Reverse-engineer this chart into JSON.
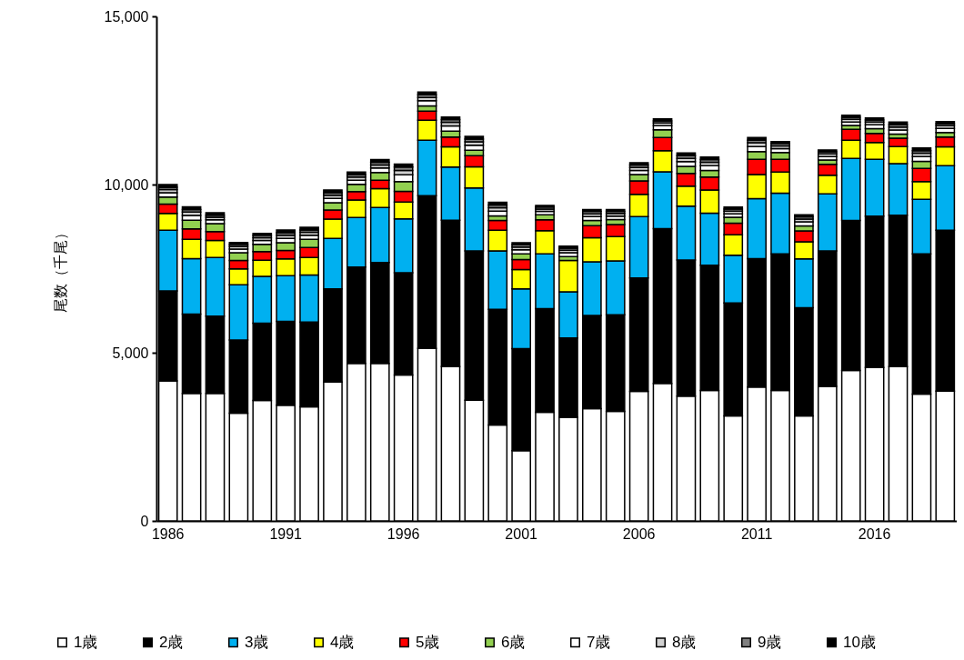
{
  "chart_data": {
    "type": "bar",
    "stacked": true,
    "ylabel": "尾数（千尾）",
    "categories": [
      "1986",
      null,
      null,
      null,
      null,
      "1991",
      null,
      null,
      null,
      null,
      "1996",
      null,
      null,
      null,
      null,
      "2001",
      null,
      null,
      null,
      null,
      "2006",
      null,
      null,
      null,
      null,
      "2011",
      null,
      null,
      null,
      null,
      "2016",
      null,
      null,
      null
    ],
    "ylim": [
      0,
      15000
    ],
    "yticks": [
      0,
      {
        "value": 5000,
        "label": "5,000"
      },
      {
        "value": 10000,
        "label": "10,000"
      },
      {
        "value": 15000,
        "label": "15,000"
      }
    ],
    "grid": false,
    "legend": "bottom",
    "series": [
      {
        "name": "1歳",
        "color": "#ffffff",
        "values": [
          4160,
          3790,
          3790,
          3200,
          3580,
          3440,
          3390,
          4130,
          4680,
          4680,
          4340,
          5130,
          4590,
          3590,
          2850,
          2090,
          3230,
          3080,
          3340,
          3260,
          3850,
          4090,
          3710,
          3880,
          3120,
          3980,
          3880,
          3120,
          4000,
          4470,
          4560,
          4590,
          3770,
          3860
        ]
      },
      {
        "name": "2歳",
        "color": "#000000",
        "values": [
          2680,
          2360,
          2300,
          2180,
          2300,
          2490,
          2520,
          2770,
          2870,
          3000,
          3040,
          4540,
          4350,
          4440,
          3440,
          3030,
          3080,
          2360,
          2770,
          2870,
          3370,
          4600,
          4050,
          3720,
          3360,
          3820,
          4060,
          3220,
          4030,
          4460,
          4500,
          4500,
          4170,
          4780
        ]
      },
      {
        "name": "3歳",
        "color": "#00b0f0",
        "values": [
          1800,
          1650,
          1740,
          1640,
          1390,
          1360,
          1400,
          1500,
          1470,
          1640,
          1600,
          1650,
          1580,
          1870,
          1740,
          1780,
          1630,
          1370,
          1590,
          1600,
          1830,
          1690,
          1600,
          1550,
          1420,
          1780,
          1800,
          1450,
          1690,
          1850,
          1690,
          1530,
          1620,
          1920
        ]
      },
      {
        "name": "4歳",
        "color": "#ffff00",
        "values": [
          500,
          570,
          510,
          470,
          480,
          500,
          520,
          570,
          520,
          560,
          500,
          590,
          600,
          630,
          610,
          570,
          690,
          930,
          720,
          720,
          660,
          630,
          590,
          690,
          610,
          720,
          630,
          510,
          560,
          540,
          500,
          510,
          530,
          560
        ]
      },
      {
        "name": "5歳",
        "color": "#ff0000",
        "values": [
          280,
          310,
          260,
          250,
          260,
          250,
          300,
          270,
          250,
          250,
          320,
          270,
          290,
          330,
          290,
          300,
          320,
          null,
          360,
          360,
          400,
          390,
          380,
          380,
          340,
          450,
          380,
          320,
          320,
          320,
          270,
          250,
          390,
          290
        ]
      },
      {
        "name": "6歳",
        "color": "#92d050",
        "values": [
          210,
          260,
          240,
          230,
          210,
          230,
          240,
          220,
          220,
          230,
          290,
          160,
          180,
          160,
          140,
          170,
          150,
          120,
          150,
          150,
          190,
          230,
          210,
          200,
          180,
          230,
          200,
          150,
          130,
          120,
          140,
          120,
          210,
          140
        ]
      },
      {
        "name": "7歳",
        "color": "#ffffff",
        "values": [
          130,
          140,
          110,
          110,
          120,
          130,
          120,
          130,
          120,
          130,
          200,
          150,
          150,
          150,
          140,
          120,
          100,
          110,
          120,
          100,
          120,
          120,
          140,
          140,
          100,
          150,
          120,
          120,
          100,
          100,
          120,
          120,
          140,
          120
        ]
      },
      {
        "name": "8歳",
        "color": "#d0d0d0",
        "values": [
          90,
          100,
          80,
          80,
          80,
          90,
          90,
          90,
          90,
          90,
          130,
          100,
          110,
          100,
          100,
          80,
          70,
          80,
          80,
          80,
          90,
          80,
          100,
          100,
          80,
          110,
          80,
          80,
          80,
          80,
          80,
          90,
          100,
          80
        ]
      },
      {
        "name": "9歳",
        "color": "#808080",
        "values": [
          70,
          80,
          60,
          60,
          70,
          80,
          70,
          80,
          70,
          80,
          100,
          80,
          80,
          80,
          80,
          70,
          60,
          60,
          70,
          60,
          70,
          60,
          80,
          80,
          60,
          80,
          70,
          70,
          60,
          60,
          60,
          70,
          80,
          60
        ]
      },
      {
        "name": "10歳",
        "color": "#000000",
        "values": [
          80,
          80,
          70,
          60,
          60,
          80,
          80,
          80,
          80,
          80,
          90,
          80,
          80,
          80,
          80,
          60,
          50,
          60,
          60,
          60,
          70,
          60,
          80,
          80,
          60,
          80,
          60,
          60,
          60,
          60,
          60,
          80,
          80,
          60
        ]
      }
    ]
  }
}
